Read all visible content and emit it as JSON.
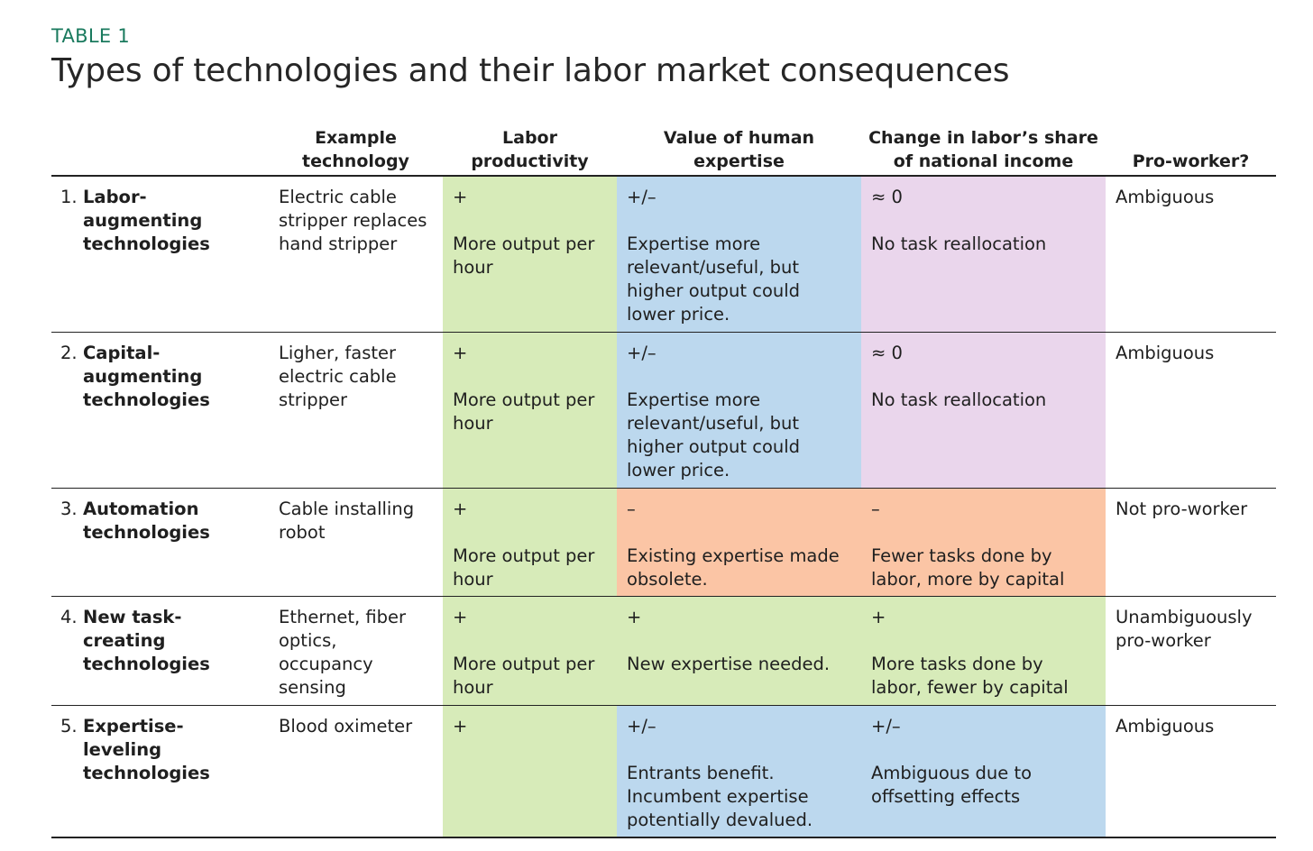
{
  "table_label": "TABLE 1",
  "title": "Types of technologies and their labor market consequences",
  "headers": {
    "col0": "",
    "col1": "Example technology",
    "col2": "Labor productivity",
    "col3": "Value of human expertise",
    "col4": "Change in labor’s share of national income",
    "col5": "Pro-worker?"
  },
  "colors": {
    "green": "#d7ebb9",
    "blue": "#bcd8ee",
    "pink": "#ead6ec",
    "orange": "#fbc5a5",
    "label_teal": "#1a7a5e"
  },
  "rows": [
    {
      "num": "1.",
      "name": "Labor-augmenting technologies",
      "example": "Electric cable stripper replaces hand stripper",
      "productivity": {
        "sign": "+",
        "text": "More output per hour",
        "color": "green"
      },
      "expertise": {
        "sign": "+/–",
        "text": "Expertise more relevant/useful, but higher output could lower price.",
        "color": "blue"
      },
      "labor_share": {
        "sign": "≈ 0",
        "text": "No task reallocation",
        "color": "pink"
      },
      "pro_worker": "Ambiguous"
    },
    {
      "num": "2.",
      "name": "Capital-augmenting technologies",
      "example": "Ligher, faster electric cable stripper",
      "productivity": {
        "sign": "+",
        "text": "More output per hour",
        "color": "green"
      },
      "expertise": {
        "sign": "+/–",
        "text": "Expertise more relevant/useful, but higher output could lower price.",
        "color": "blue"
      },
      "labor_share": {
        "sign": "≈ 0",
        "text": "No task reallocation",
        "color": "pink"
      },
      "pro_worker": "Ambiguous"
    },
    {
      "num": "3.",
      "name": "Automation technologies",
      "example": "Cable installing robot",
      "productivity": {
        "sign": "+",
        "text": "More output per hour",
        "color": "green"
      },
      "expertise": {
        "sign": "–",
        "text": "Existing expertise made obsolete.",
        "color": "orange"
      },
      "labor_share": {
        "sign": "–",
        "text": "Fewer tasks done by labor, more by capital",
        "color": "orange"
      },
      "pro_worker": "Not pro-worker"
    },
    {
      "num": "4.",
      "name": "New task-creating technologies",
      "example": "Ethernet, fiber optics, occupancy sensing",
      "productivity": {
        "sign": "+",
        "text": "More output per hour",
        "color": "green"
      },
      "expertise": {
        "sign": "+",
        "text": "New expertise needed.",
        "color": "green"
      },
      "labor_share": {
        "sign": "+",
        "text": "More tasks done by labor, fewer by capital",
        "color": "green"
      },
      "pro_worker": "Unambiguously pro-worker"
    },
    {
      "num": "5.",
      "name": "Expertise-leveling technologies",
      "example": "Blood oximeter",
      "productivity": {
        "sign": "+",
        "text": "",
        "color": "green"
      },
      "expertise": {
        "sign": "+/–",
        "text": "Entrants benefit. Incumbent expertise potentially devalued.",
        "color": "blue"
      },
      "labor_share": {
        "sign": "+/–",
        "text": "Ambiguous due to offsetting effects",
        "color": "blue"
      },
      "pro_worker": "Ambiguous"
    }
  ]
}
